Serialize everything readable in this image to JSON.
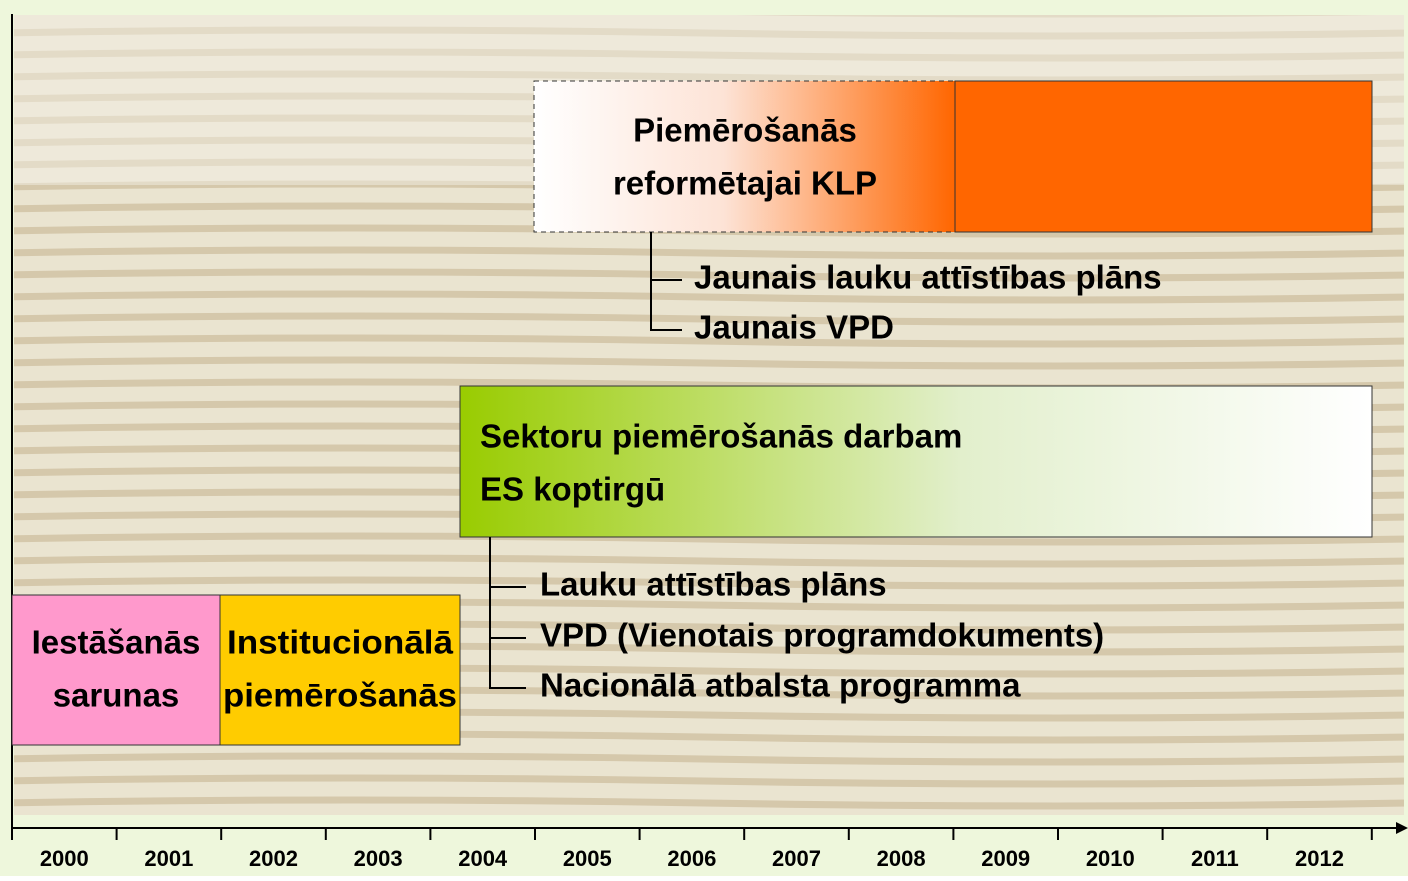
{
  "years": [
    "2000",
    "2001",
    "2002",
    "2003",
    "2004",
    "2005",
    "2006",
    "2007",
    "2008",
    "2009",
    "2010",
    "2011",
    "2012"
  ],
  "accession": {
    "lines": [
      "Iestāšanās",
      "sarunas"
    ]
  },
  "institutional": {
    "lines": [
      "Institucionālā",
      "piemērošanās"
    ]
  },
  "sectoral": {
    "lines": [
      "Sektoru piemērošanās darbam",
      "ES koptirgū"
    ],
    "items": [
      "Lauku attīstības plāns",
      "VPD (Vienotais programdokuments)",
      "Nacionālā atbalsta programma"
    ]
  },
  "reformed": {
    "lines": [
      "Piemērošanās",
      "reformētajai KLP"
    ],
    "items": [
      "Jaunais lauku attīstības plāns",
      "Jaunais VPD"
    ]
  }
}
